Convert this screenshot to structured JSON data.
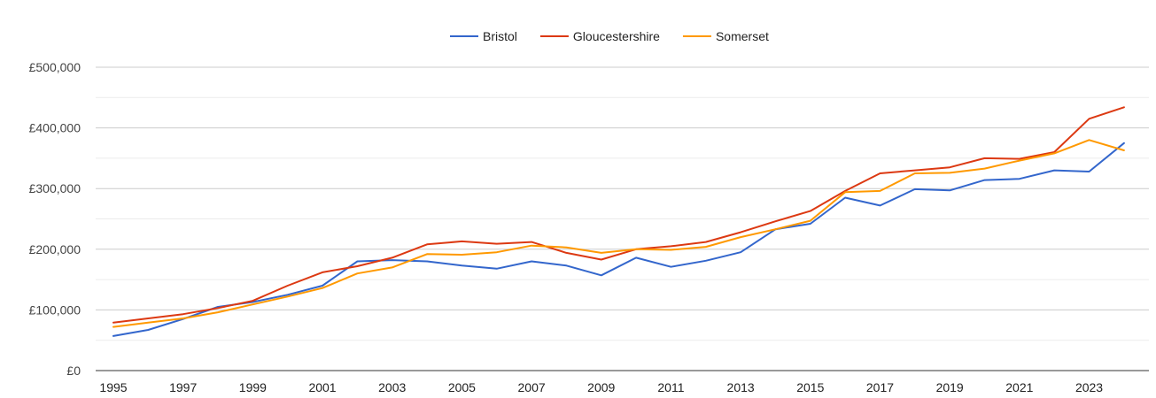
{
  "chart_data": {
    "type": "line",
    "title": "",
    "xlabel": "",
    "ylabel": "",
    "x": [
      1995,
      1996,
      1997,
      1998,
      1999,
      2000,
      2001,
      2002,
      2003,
      2004,
      2005,
      2006,
      2007,
      2008,
      2009,
      2010,
      2011,
      2012,
      2013,
      2014,
      2015,
      2016,
      2017,
      2018,
      2019,
      2020,
      2021,
      2022,
      2023,
      2024
    ],
    "x_tick_labels": [
      "1995",
      "1997",
      "1999",
      "2001",
      "2003",
      "2005",
      "2007",
      "2009",
      "2011",
      "2013",
      "2015",
      "2017",
      "2019",
      "2021",
      "2023"
    ],
    "y_tick_labels": [
      "£0",
      "£100,000",
      "£200,000",
      "£300,000",
      "£400,000",
      "£500,000"
    ],
    "ylim": [
      0,
      500000
    ],
    "grid": true,
    "legend_position": "top",
    "series": [
      {
        "name": "Bristol",
        "color": "#3366cc",
        "values": [
          57000,
          67000,
          85000,
          105000,
          113000,
          125000,
          140000,
          180000,
          182000,
          180000,
          173000,
          168000,
          180000,
          173000,
          157000,
          186000,
          171000,
          181000,
          195000,
          233000,
          242000,
          285000,
          272000,
          299000,
          297000,
          314000,
          316000,
          330000,
          328000,
          375000
        ]
      },
      {
        "name": "Gloucestershire",
        "color": "#dc3912",
        "values": [
          79000,
          86000,
          93000,
          103000,
          115000,
          140000,
          162000,
          172000,
          186000,
          208000,
          213000,
          209000,
          212000,
          194000,
          183000,
          200000,
          205000,
          212000,
          228000,
          246000,
          263000,
          296000,
          325000,
          330000,
          335000,
          350000,
          349000,
          360000,
          415000,
          434000
        ]
      },
      {
        "name": "Somerset",
        "color": "#ff9900",
        "values": [
          72000,
          79000,
          86000,
          96000,
          109000,
          122000,
          136000,
          160000,
          170000,
          192000,
          191000,
          195000,
          206000,
          203000,
          194000,
          200000,
          199000,
          204000,
          220000,
          233000,
          247000,
          294000,
          296000,
          325000,
          326000,
          333000,
          346000,
          358000,
          380000,
          363000
        ]
      }
    ]
  }
}
